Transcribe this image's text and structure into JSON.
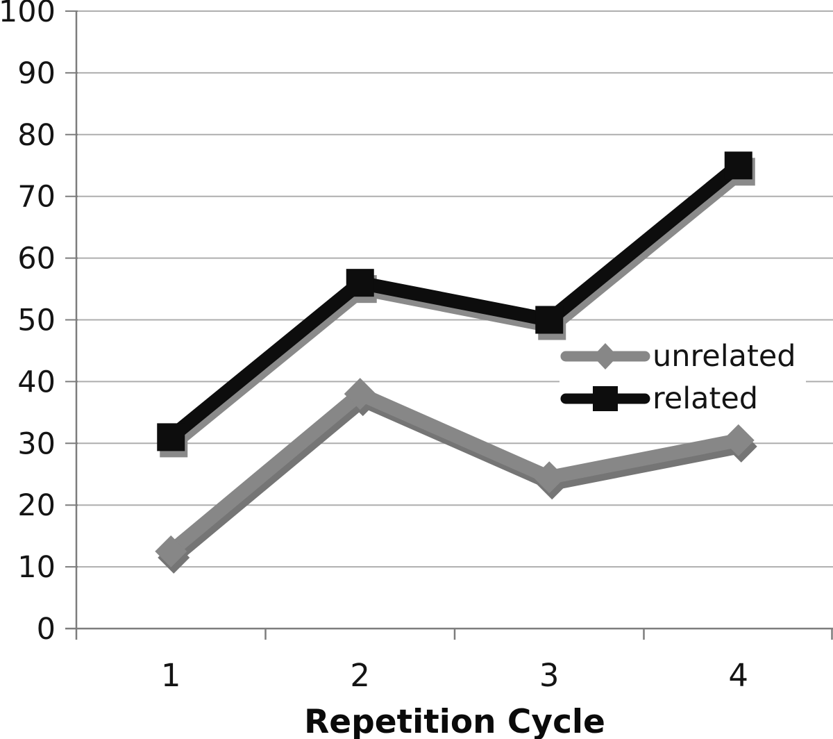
{
  "chart_data": {
    "type": "line",
    "title": "",
    "xlabel": "Repetition Cycle",
    "ylabel": "",
    "x_tick_labels": [
      "1",
      "2",
      "3",
      "4"
    ],
    "y_ticks": [
      0,
      10,
      20,
      30,
      40,
      50,
      60,
      70,
      80,
      90,
      100
    ],
    "ylim": [
      0,
      100
    ],
    "grid": "horizontal gridlines every 10 units",
    "legend_position": "center-right inside plot area",
    "series": [
      {
        "name": "unrelated",
        "marker": "diamond",
        "color": "#878787",
        "shadow_color": "#757575",
        "values": [
          12.5,
          38,
          24.5,
          30.5
        ]
      },
      {
        "name": "related",
        "marker": "square",
        "color": "#0d0d0d",
        "shadow_color": "#8a8a8a",
        "values": [
          31,
          56,
          50,
          75
        ]
      }
    ]
  },
  "colors": {
    "background": "#ffffff",
    "gridline": "#aeaeae",
    "axis": "#7d7d7d",
    "text": "#141414"
  }
}
